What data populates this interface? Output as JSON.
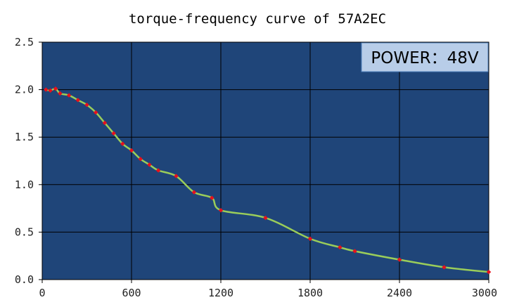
{
  "chart_data": {
    "type": "line",
    "title": "torque-frequency curve of 57A2EC",
    "xlabel": "",
    "ylabel": "",
    "xlim": [
      0,
      3000
    ],
    "ylim": [
      0,
      2.5
    ],
    "x_ticks": [
      "0",
      "600",
      "1200",
      "1800",
      "2400",
      "3000"
    ],
    "y_ticks": [
      "0.0",
      "0.5",
      "1.0",
      "1.5",
      "2.0",
      "2.5"
    ],
    "grid": true,
    "annotation": "POWER：48V",
    "series": [
      {
        "x": [
          25,
          55,
          90,
          120,
          180,
          240,
          300,
          360,
          420,
          480,
          540,
          600,
          660,
          720,
          780,
          900,
          1020,
          1140,
          1200,
          1500,
          1800,
          2000,
          2100,
          2400,
          2700,
          3000
        ],
        "y": [
          2.0,
          1.99,
          2.01,
          1.96,
          1.94,
          1.89,
          1.84,
          1.76,
          1.65,
          1.54,
          1.43,
          1.36,
          1.27,
          1.21,
          1.15,
          1.09,
          0.92,
          0.86,
          0.73,
          0.65,
          0.43,
          0.34,
          0.3,
          0.21,
          0.13,
          0.08
        ]
      }
    ],
    "colors": {
      "plot_background": "#1f4579",
      "grid": "#000000",
      "line": "#9acd5a",
      "marker": "#e8101c",
      "badge_fill": "#b8cde8",
      "badge_border": "#4f81bd"
    }
  }
}
